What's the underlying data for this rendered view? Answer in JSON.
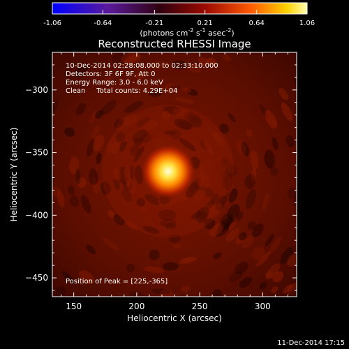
{
  "chart_data": {
    "type": "heatmap",
    "title": "Reconstructed RHESSI Image",
    "xlabel": "Heliocentric X (arcsec)",
    "ylabel": "Heliocentric Y (arcsec)",
    "xlim": [
      133,
      327
    ],
    "ylim": [
      -465,
      -270
    ],
    "x_ticks": [
      150,
      200,
      250,
      300
    ],
    "y_ticks": [
      -300,
      -350,
      -400,
      -450
    ],
    "colorbar": {
      "ticks": [
        "-1.06",
        "-0.64",
        "-0.21",
        "0.21",
        "0.64",
        "1.06"
      ],
      "min": -1.06,
      "max": 1.06,
      "unit_prefix": "(photons cm",
      "unit_sup1": "-2",
      "unit_mid1": " s",
      "unit_sup2": "-1",
      "unit_mid2": " asec",
      "unit_sup3": "-2",
      "unit_suffix": ")"
    },
    "info_lines": [
      "10-Dec-2014 02:28:08.000 to 02:33:10.000",
      "Detectors: 3F 6F 9F, Att 0",
      "Energy Range: 3.0 - 6.0 keV",
      "Clean     Total counts: 4.29E+04"
    ],
    "peak_text": "Position of Peak = [225,-365]",
    "peak": {
      "x": 225,
      "y": -365,
      "value": 1.06
    },
    "background_level": 0.25,
    "colors": {
      "cmap": [
        "#0000ff",
        "#5a1a9a",
        "#400000",
        "#b01000",
        "#ff6a00",
        "#ffff80"
      ]
    }
  },
  "footer": {
    "timestamp": "11-Dec-2014 17:15"
  }
}
